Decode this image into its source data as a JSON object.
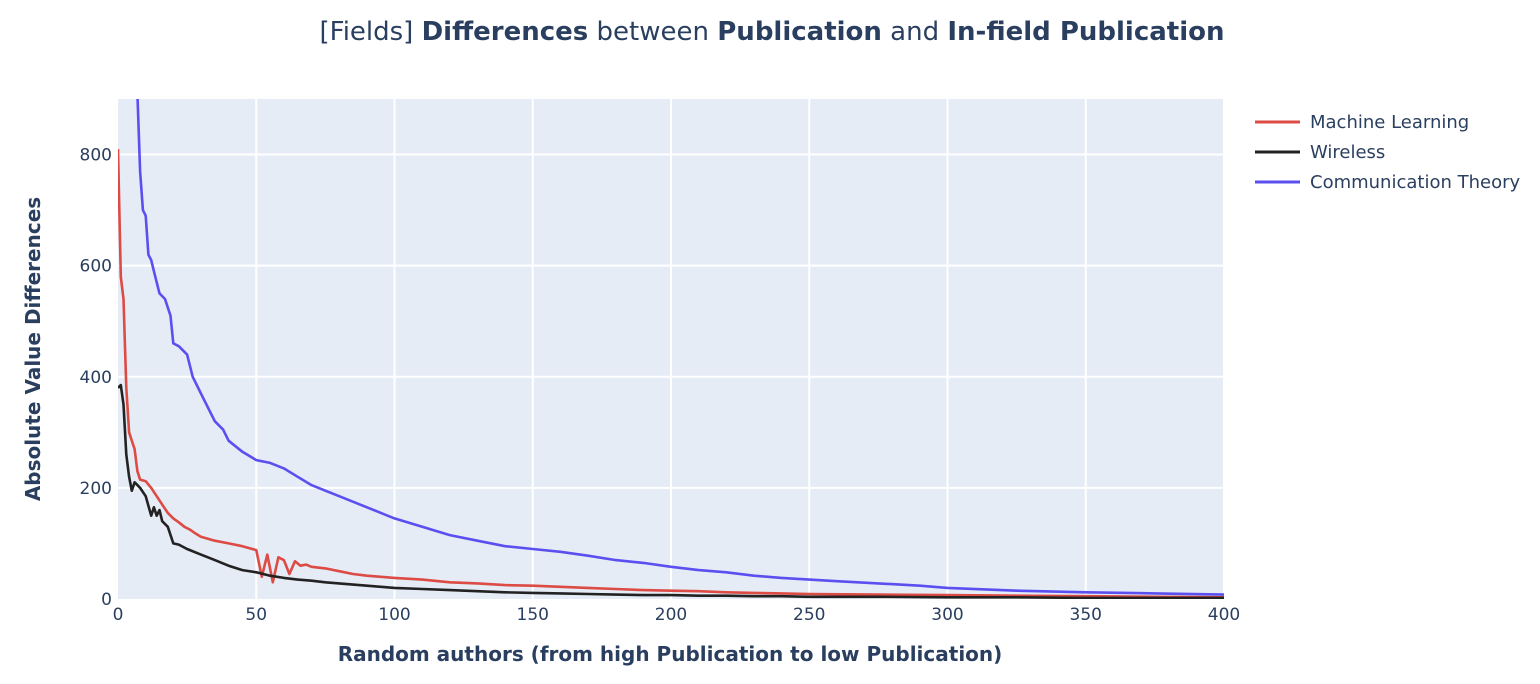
{
  "chart_data": {
    "type": "line",
    "title": {
      "prefix": "[Fields] ",
      "word1": "Differences",
      "mid1": " between ",
      "word2": "Publication",
      "mid2": " and ",
      "word3": "In-field Publication"
    },
    "xlabel": "Random authors (from high Publication to low Publication)",
    "ylabel": "Absolute Value Differences",
    "xlim": [
      0,
      400
    ],
    "ylim": [
      0,
      900
    ],
    "xticks": [
      0,
      50,
      100,
      150,
      200,
      250,
      300,
      350,
      400
    ],
    "yticks": [
      0,
      200,
      400,
      600,
      800
    ],
    "xtick_labels": [
      "0",
      "50",
      "100",
      "150",
      "200",
      "250",
      "300",
      "350",
      "400"
    ],
    "ytick_labels": [
      "0",
      "200",
      "400",
      "600",
      "800"
    ],
    "grid": true,
    "legend_position": "top-right, outside plot",
    "plot_background": "#e5ecf6",
    "series": [
      {
        "name": "Machine Learning",
        "color": "#dd4b45",
        "x": [
          0,
          1,
          2,
          3,
          4,
          5,
          6,
          7,
          8,
          10,
          12,
          14,
          16,
          18,
          20,
          22,
          24,
          26,
          28,
          30,
          35,
          40,
          45,
          50,
          52,
          54,
          56,
          58,
          60,
          62,
          64,
          66,
          68,
          70,
          75,
          80,
          85,
          90,
          95,
          100,
          110,
          120,
          130,
          140,
          150,
          160,
          170,
          180,
          190,
          200,
          210,
          220,
          230,
          240,
          250,
          275,
          300,
          325,
          350,
          375,
          400
        ],
        "y": [
          810,
          580,
          540,
          380,
          300,
          285,
          270,
          230,
          215,
          212,
          200,
          185,
          170,
          155,
          145,
          138,
          130,
          125,
          118,
          112,
          105,
          100,
          95,
          88,
          40,
          80,
          30,
          75,
          70,
          45,
          68,
          60,
          62,
          58,
          55,
          50,
          45,
          42,
          40,
          38,
          35,
          30,
          28,
          25,
          24,
          22,
          20,
          18,
          16,
          15,
          14,
          12,
          11,
          10,
          9,
          8,
          7,
          6,
          5,
          4,
          3
        ]
      },
      {
        "name": "Wireless",
        "color": "#222222",
        "x": [
          0,
          1,
          2,
          3,
          4,
          5,
          6,
          7,
          8,
          10,
          12,
          13,
          14,
          15,
          16,
          18,
          20,
          22,
          25,
          30,
          35,
          40,
          45,
          50,
          55,
          60,
          65,
          70,
          75,
          80,
          85,
          90,
          95,
          100,
          110,
          120,
          130,
          140,
          150,
          160,
          170,
          180,
          190,
          200,
          210,
          220,
          230,
          240,
          250,
          275,
          300,
          325,
          350,
          375,
          400
        ],
        "y": [
          380,
          385,
          350,
          260,
          220,
          195,
          210,
          205,
          200,
          185,
          150,
          165,
          150,
          160,
          140,
          130,
          100,
          98,
          90,
          80,
          70,
          60,
          52,
          48,
          42,
          38,
          35,
          33,
          30,
          28,
          26,
          24,
          22,
          20,
          18,
          16,
          14,
          12,
          11,
          10,
          9,
          8,
          7,
          7,
          6,
          6,
          5,
          5,
          4,
          4,
          3,
          3,
          2,
          2,
          2
        ]
      },
      {
        "name": "Communication Theory",
        "color": "#5b4ff0",
        "x": [
          7,
          8,
          9,
          10,
          11,
          12,
          13,
          15,
          17,
          19,
          20,
          22,
          25,
          27,
          30,
          33,
          35,
          38,
          40,
          45,
          50,
          55,
          60,
          65,
          70,
          75,
          80,
          90,
          100,
          110,
          120,
          130,
          140,
          150,
          160,
          170,
          180,
          190,
          200,
          210,
          220,
          230,
          240,
          250,
          260,
          275,
          290,
          300,
          325,
          350,
          375,
          400
        ],
        "y": [
          910,
          770,
          700,
          690,
          620,
          610,
          590,
          550,
          540,
          510,
          460,
          455,
          440,
          400,
          370,
          340,
          320,
          305,
          285,
          265,
          250,
          245,
          235,
          220,
          205,
          195,
          185,
          165,
          145,
          130,
          115,
          105,
          95,
          90,
          85,
          78,
          70,
          65,
          58,
          52,
          48,
          42,
          38,
          35,
          32,
          28,
          24,
          20,
          15,
          12,
          10,
          8
        ]
      }
    ]
  }
}
